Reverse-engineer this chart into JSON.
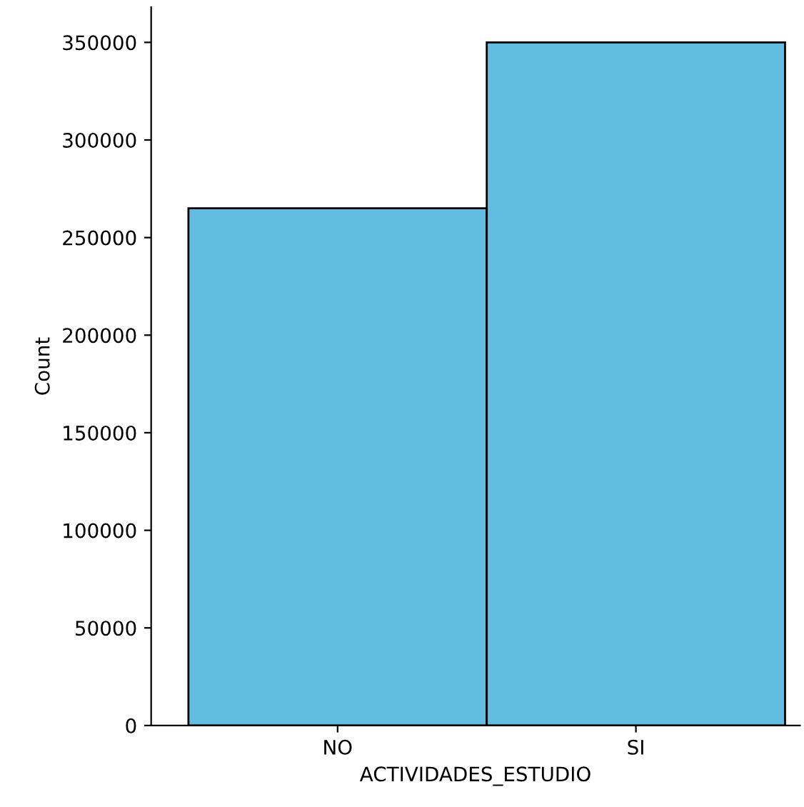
{
  "chart_data": {
    "type": "bar",
    "xlabel": "ACTIVIDADES_ESTUDIO",
    "ylabel": "Count",
    "categories": [
      "NO",
      "SI"
    ],
    "values": [
      265000,
      350000
    ],
    "color": "#62bce0",
    "ylim": [
      0,
      368000
    ],
    "yticks": [
      0,
      50000,
      100000,
      150000,
      200000,
      250000,
      300000,
      350000
    ],
    "grid": false
  }
}
